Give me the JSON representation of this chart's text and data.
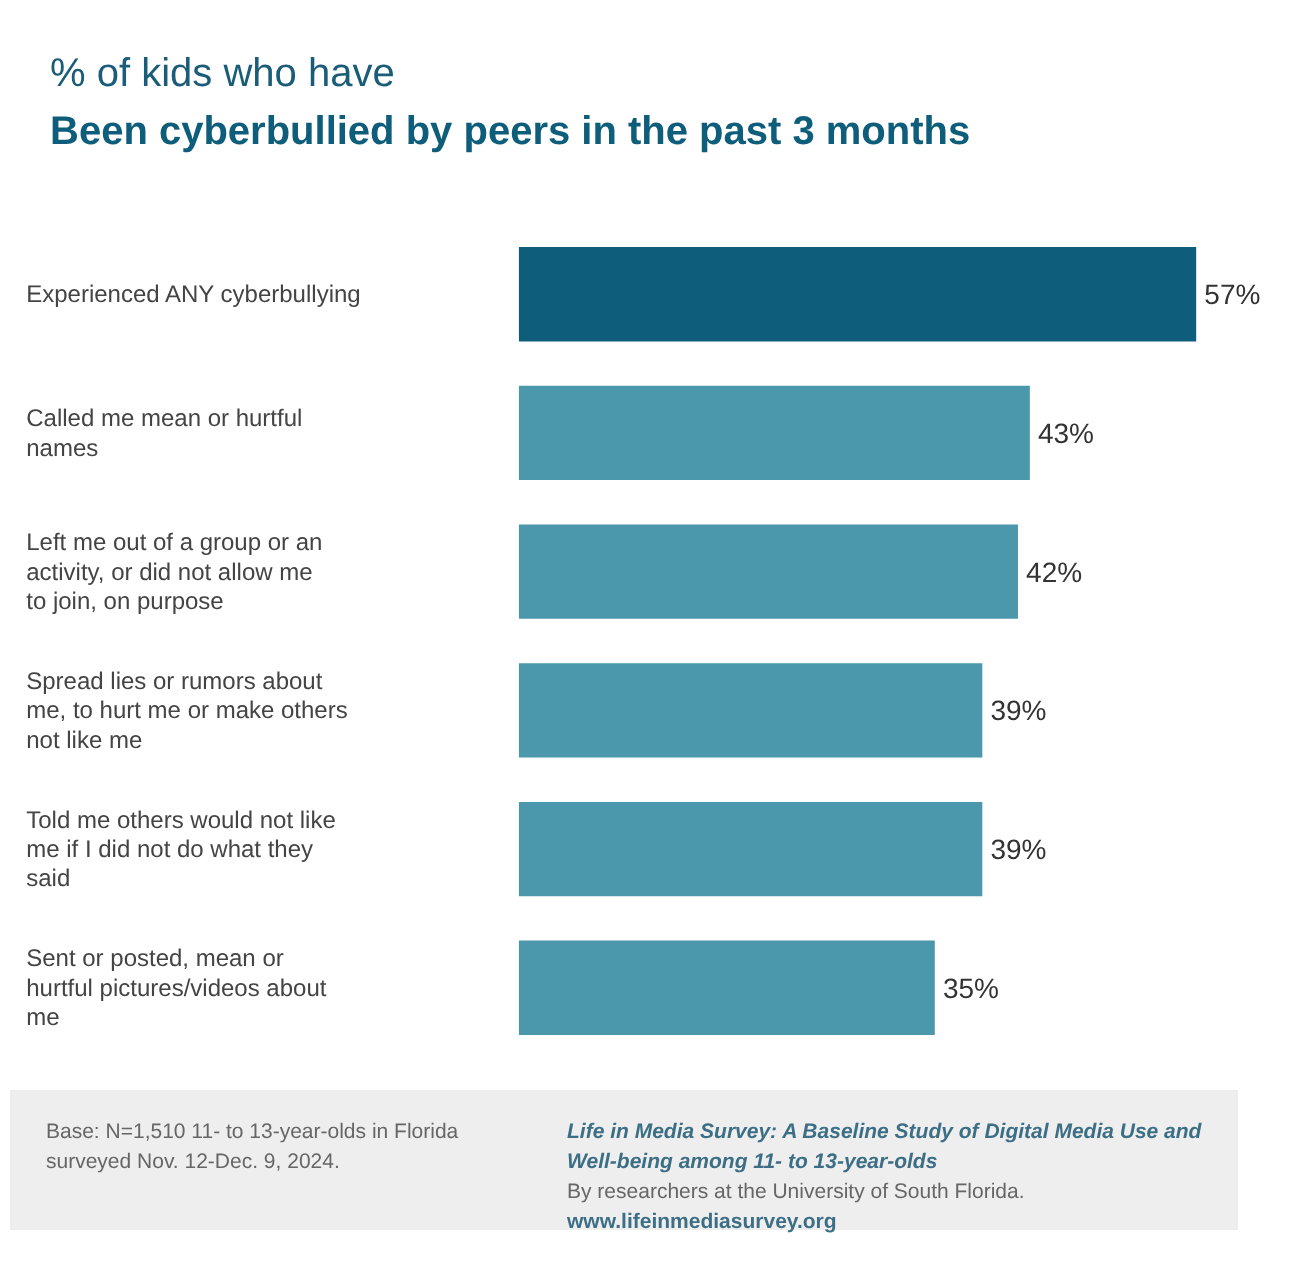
{
  "chart_data": {
    "type": "bar",
    "orientation": "horizontal",
    "subtitle": "% of kids who have",
    "title": "Been cyberbullied by peers in the past 3 months",
    "categories": [
      "Experienced ANY cyberbullying",
      "Called me mean or hurtful names",
      "Left me out of a group or an activity, or did not allow me to join, on purpose",
      "Spread lies or rumors about me, to hurt me or make others not like me",
      "Told me others would not like me if I did not do what they said",
      "Sent or posted, mean or hurtful pictures/videos about me"
    ],
    "values": [
      57,
      43,
      42,
      39,
      39,
      35
    ],
    "colors": [
      "#0e5e7b",
      "#4b98ac",
      "#4b98ac",
      "#4b98ac",
      "#4b98ac",
      "#4b98ac"
    ],
    "value_labels": [
      "57%",
      "43%",
      "42%",
      "39%",
      "39%",
      "35%"
    ],
    "grid": false,
    "tick_labels": false,
    "annotations": [
      "Base: N=1,510 11- to 13-year-olds in Florida surveyed Nov. 12-Dec. 9, 2024.",
      "Life in Media Survey: A Baseline Study of Digital Media Use and Well-being among 11- to 13-year-olds",
      "By researchers at the University of South Florida.",
      "www.lifeinmediasurvey.org"
    ]
  }
}
